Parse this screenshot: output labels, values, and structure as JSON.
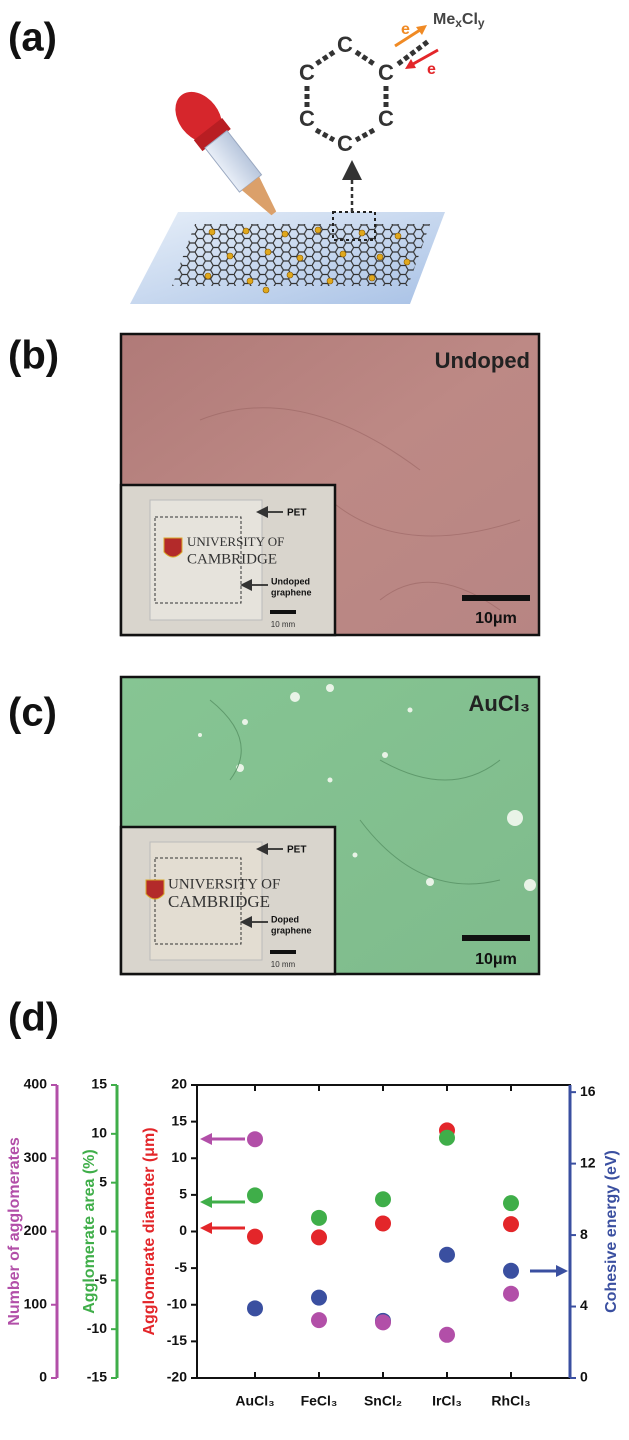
{
  "panel_a": {
    "label": "(a)",
    "atoms": [
      "C",
      "C",
      "C",
      "C",
      "C",
      "C"
    ],
    "dopant": [
      "Me",
      "x",
      "Cl",
      "y"
    ],
    "electron_out": "e",
    "electron_in": "e"
  },
  "panel_b": {
    "label": "(b)",
    "caption": "Undoped",
    "scale": "10μm",
    "inset": {
      "substrate": "PET",
      "logo": [
        "UNIVERSITY OF",
        "CAMBRIDGE"
      ],
      "region": [
        "Undoped",
        "graphene"
      ],
      "scale": "10 mm"
    }
  },
  "panel_c": {
    "label": "(c)",
    "caption": "AuCl₃",
    "scale": "10μm",
    "inset": {
      "substrate": "PET",
      "logo": [
        "UNIVERSITY OF",
        "CAMBRIDGE"
      ],
      "region": [
        "Doped",
        "graphene"
      ],
      "scale": "10 mm"
    }
  },
  "panel_d": {
    "label": "(d)"
  },
  "chart_data": {
    "type": "scatter",
    "categories": [
      "AuCl₃",
      "FeCl₃",
      "SnCl₂",
      "IrCl₃",
      "RhCl₃"
    ],
    "ylabel": "Agglomerate diameter (μm)",
    "ylim": [
      -20,
      20
    ],
    "yticks": [
      -20,
      -15,
      -10,
      -5,
      0,
      5,
      10,
      15,
      20
    ],
    "y2label": "Cohesive energy (eV)",
    "y2lim": [
      0,
      16.4
    ],
    "y2ticks": [
      0,
      4,
      8,
      12,
      16
    ],
    "y3label": "Agglomerate area (%)",
    "y3lim": [
      -15,
      15
    ],
    "y3ticks": [
      -15,
      -10,
      -5,
      0,
      5,
      10,
      15
    ],
    "y4label": "Number of agglomerates",
    "y4lim": [
      0,
      400
    ],
    "y4ticks": [
      0,
      100,
      200,
      300,
      400
    ],
    "axis_colors": {
      "y": "#e3262a",
      "y2": "#3a4fa0",
      "y3": "#3fae49",
      "y4": "#b24fa8"
    },
    "series": [
      {
        "axis": "y2",
        "color": "#3a4fa0",
        "values": [
          3.9,
          4.5,
          3.2,
          6.9,
          6.0
        ]
      },
      {
        "axis": "y4",
        "color": "#b24fa8",
        "values": [
          326,
          79,
          76,
          59,
          115
        ]
      },
      {
        "axis": "y",
        "color": "#e3262a",
        "values": [
          -0.7,
          -0.8,
          1.1,
          13.8,
          1.0
        ]
      },
      {
        "axis": "y3",
        "color": "#3fae49",
        "values": [
          3.7,
          1.4,
          3.3,
          9.6,
          2.9
        ]
      }
    ]
  }
}
